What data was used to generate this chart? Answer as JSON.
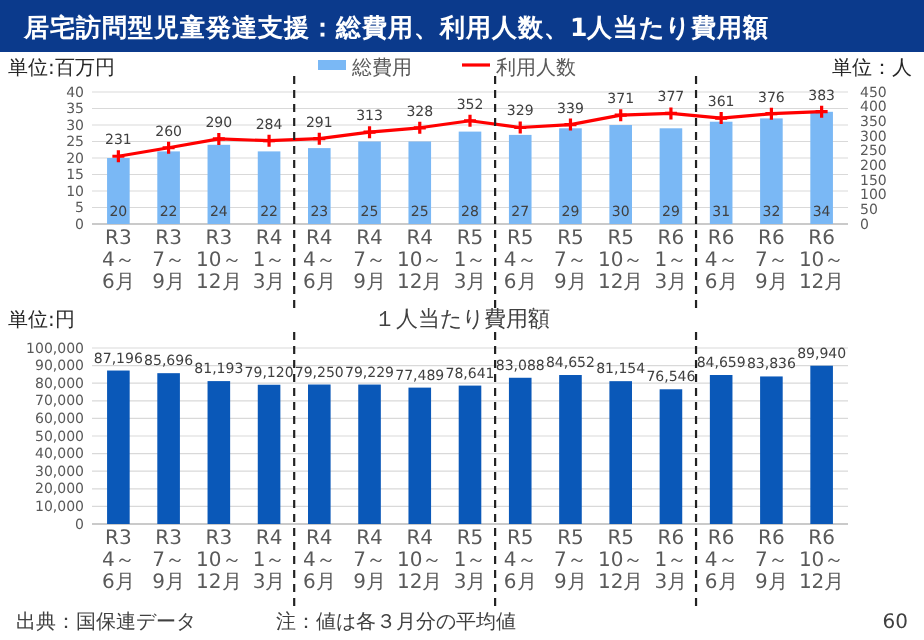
{
  "chart_data": [
    {
      "type": "bar",
      "title": "居宅訪問型児童発達支援：総費用、利用人数、1人当たり費用額",
      "ylabel": "単位:百万円",
      "y2label": "単位：人",
      "categories": [
        "R3\n4～6月",
        "R3\n7～9月",
        "R3\n10～12月",
        "R4\n1～3月",
        "R4\n4～6月",
        "R4\n7～9月",
        "R4\n10～12月",
        "R5\n1～3月",
        "R5\n4～6月",
        "R5\n7～9月",
        "R5\n10～12月",
        "R6\n1～3月",
        "R6\n4～6月",
        "R6\n7～9月",
        "R6\n10～12月"
      ],
      "series": [
        {
          "name": "総費用",
          "type": "bar",
          "color": "#7ab8f5",
          "values": [
            20,
            22,
            24,
            22,
            23,
            25,
            25,
            28,
            27,
            29,
            30,
            29,
            31,
            32,
            34
          ]
        },
        {
          "name": "利用人数",
          "type": "line",
          "axis": "y2",
          "color": "#ff0000",
          "marker": "cross",
          "values": [
            231,
            260,
            290,
            284,
            291,
            313,
            328,
            352,
            329,
            339,
            371,
            377,
            361,
            376,
            383
          ]
        }
      ],
      "ylim": [
        0,
        40
      ],
      "yticks": [
        0,
        5,
        10,
        15,
        20,
        25,
        30,
        35,
        40
      ],
      "y2lim": [
        0,
        450
      ],
      "y2ticks": [
        0,
        50,
        100,
        150,
        200,
        250,
        300,
        350,
        400,
        450
      ],
      "grid": "y",
      "legend": "top",
      "data_labels": true
    },
    {
      "type": "bar",
      "title": "１人当たり費用額",
      "ylabel": "単位:円",
      "categories": [
        "R3\n4～6月",
        "R3\n7～9月",
        "R3\n10～12月",
        "R4\n1～3月",
        "R4\n4～6月",
        "R4\n7～9月",
        "R4\n10～12月",
        "R5\n1～3月",
        "R5\n4～6月",
        "R5\n7～9月",
        "R5\n10～12月",
        "R6\n1～3月",
        "R6\n4～6月",
        "R6\n7～9月",
        "R6\n10～12月"
      ],
      "values": [
        87196,
        85696,
        81193,
        79120,
        79250,
        79229,
        77489,
        78641,
        83088,
        84652,
        81154,
        76546,
        84659,
        83836,
        89940
      ],
      "color": "#0a58b8",
      "value_labels": [
        "87,196",
        "85,696",
        "81,193",
        "79,120",
        "79,250",
        "79,229",
        "77,489",
        "78,641",
        "83,088",
        "84,652",
        "81,154",
        "76,546",
        "84,659",
        "83,836",
        "89,940"
      ],
      "ylim": [
        0,
        100000
      ],
      "yticks": [
        {
          "value": 0,
          "label": "0"
        },
        {
          "value": 10000,
          "label": "10,000"
        },
        {
          "value": 20000,
          "label": "20,000"
        },
        {
          "value": 30000,
          "label": "30,000"
        },
        {
          "value": 40000,
          "label": "40,000"
        },
        {
          "value": 50000,
          "label": "50,000"
        },
        {
          "value": 60000,
          "label": "60,000"
        },
        {
          "value": 70000,
          "label": "70,000"
        },
        {
          "value": 80000,
          "label": "80,000"
        },
        {
          "value": 90000,
          "label": "90,000"
        },
        {
          "value": 100000,
          "label": "100,000"
        }
      ],
      "grid": "y",
      "annotations": [
        "出典：国保連データ",
        "注：値は各３月分の平均値",
        "60"
      ]
    }
  ]
}
